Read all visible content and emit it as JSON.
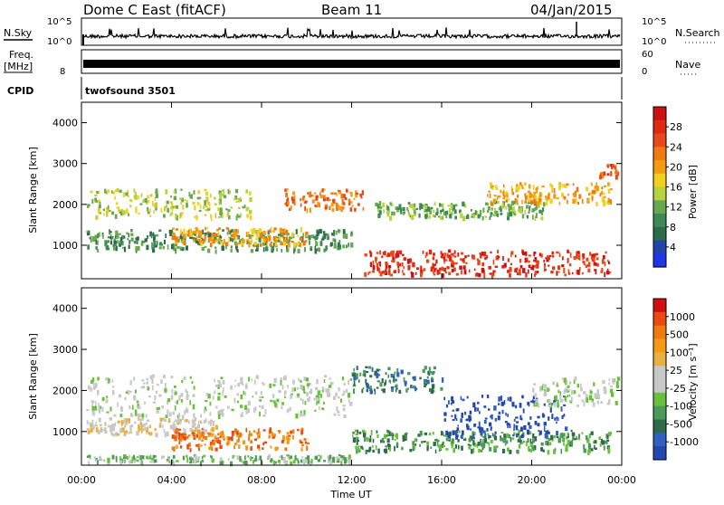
{
  "header": {
    "title": "Dome C East (fitACF)",
    "beam": "Beam 11",
    "date": "04/Jan/2015"
  },
  "top_panels": {
    "nsky_label": "N.Sky",
    "nsky_tick_top": "10^5",
    "nsky_tick_bottom": "10^0",
    "nsearch_label": "N.Search",
    "freq_label": "Freq.",
    "freq_unit": "[MHz]",
    "freq_ticks": [
      "8"
    ],
    "nave_label": "Nave",
    "nave_ticks": [
      "60",
      "0"
    ],
    "cpid_label": "CPID",
    "cpid_value": "twofsound 3501"
  },
  "colorbars": {
    "power": {
      "label": "Power [dB]",
      "ticks": [
        "28",
        "24",
        "20",
        "16",
        "12",
        "8",
        "4"
      ],
      "colors": [
        "#1f35e6",
        "#2244aa",
        "#2e6b4a",
        "#3c8a55",
        "#6aa84f",
        "#b7d23c",
        "#f0d020",
        "#f39c12",
        "#f07a10",
        "#e64a19",
        "#e02a10",
        "#d01010"
      ]
    },
    "velocity": {
      "label": "Velocity [m s⁻¹]",
      "ticks": [
        "1000",
        "500",
        "100",
        "25",
        "-25",
        "-100",
        "-500",
        "-1000"
      ],
      "colors": [
        "#2448b0",
        "#2f5fc0",
        "#2e6b4a",
        "#4b9a5a",
        "#69c03c",
        "#c8c8c8",
        "#c8c8c8",
        "#e8b040",
        "#f39c12",
        "#f07a10",
        "#e84a10",
        "#d01010"
      ]
    }
  },
  "chart_data": [
    {
      "type": "heatmap",
      "name_panel": "power",
      "xlabel": "Time UT",
      "ylabel": "Slant Range [km]",
      "x_ticks": [
        "00:00",
        "04:00",
        "08:00",
        "12:00",
        "16:00",
        "20:00",
        "00:00"
      ],
      "y_ticks": [
        "1000",
        "2000",
        "3000",
        "4000"
      ],
      "xlim": [
        0,
        24
      ],
      "ylim": [
        180,
        4500
      ],
      "colorbar": "Power [dB]",
      "features": [
        {
          "t0": 0.2,
          "t1": 12.0,
          "r": 1150,
          "dr": 250,
          "level": 3
        },
        {
          "t0": 0.2,
          "t1": 7.5,
          "r": 2050,
          "dr": 350,
          "level": 5
        },
        {
          "t0": 4.0,
          "t1": 10.0,
          "r": 1250,
          "dr": 200,
          "level": 7
        },
        {
          "t0": 9.0,
          "t1": 12.5,
          "r": 2150,
          "dr": 250,
          "level": 8
        },
        {
          "t0": 12.5,
          "t1": 23.5,
          "r": 600,
          "dr": 300,
          "level": 10
        },
        {
          "t0": 13.0,
          "t1": 20.5,
          "r": 1900,
          "dr": 200,
          "level": 4
        },
        {
          "t0": 18.0,
          "t1": 23.5,
          "r": 2300,
          "dr": 250,
          "level": 7
        },
        {
          "t0": 23.0,
          "t1": 23.8,
          "r": 2850,
          "dr": 150,
          "level": 9
        }
      ]
    },
    {
      "type": "heatmap",
      "name_panel": "velocity",
      "xlabel": "Time UT",
      "ylabel": "Slant Range [km]",
      "x_ticks": [
        "00:00",
        "04:00",
        "08:00",
        "12:00",
        "16:00",
        "20:00",
        "00:00"
      ],
      "y_ticks": [
        "1000",
        "2000",
        "3000",
        "4000"
      ],
      "xlim": [
        0,
        24
      ],
      "ylim": [
        180,
        4500
      ],
      "colorbar": "Velocity [m s⁻¹]",
      "features": [
        {
          "t0": 0.2,
          "t1": 12.0,
          "r": 1900,
          "dr": 500,
          "level": 5
        },
        {
          "t0": 0.2,
          "t1": 6.0,
          "r": 1150,
          "dr": 200,
          "level": 6
        },
        {
          "t0": 4.0,
          "t1": 10.0,
          "r": 850,
          "dr": 250,
          "level": 9
        },
        {
          "t0": 12.0,
          "t1": 23.5,
          "r": 800,
          "dr": 250,
          "level": 3
        },
        {
          "t0": 12.0,
          "t1": 16.0,
          "r": 2300,
          "dr": 300,
          "level": 2
        },
        {
          "t0": 16.0,
          "t1": 21.5,
          "r": 1400,
          "dr": 500,
          "level": 0
        },
        {
          "t0": 20.0,
          "t1": 23.8,
          "r": 2000,
          "dr": 350,
          "level": 5
        },
        {
          "t0": 0.2,
          "t1": 12.0,
          "r": 300,
          "dr": 150,
          "level": 4
        }
      ]
    }
  ]
}
